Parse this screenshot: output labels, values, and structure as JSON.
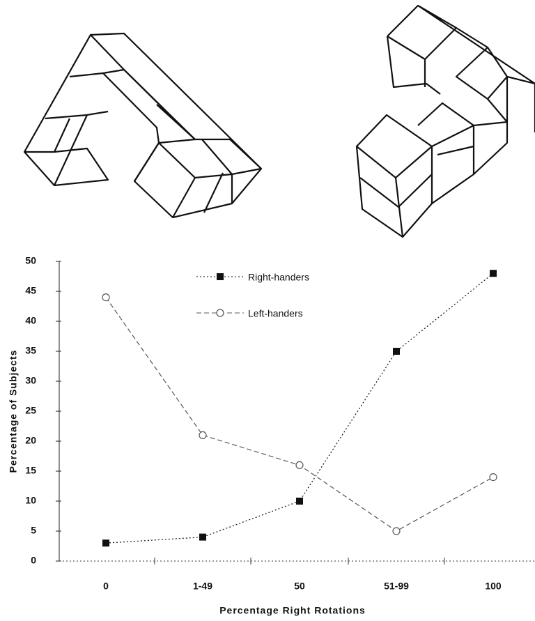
{
  "chart_data": {
    "type": "line",
    "xlabel": "Percentage Right Rotations",
    "ylabel": "Percentage of Subjects",
    "categories": [
      "0",
      "1-49",
      "50",
      "51-99",
      "100"
    ],
    "series": [
      {
        "name": "Right-handers",
        "color": "#111111",
        "marker": "square",
        "dash": "2 3",
        "values": [
          3,
          4,
          10,
          35,
          48
        ]
      },
      {
        "name": "Left-handers",
        "color": "#555555",
        "marker": "circle",
        "dash": "7 4",
        "values": [
          44,
          21,
          16,
          5,
          14
        ]
      }
    ],
    "ylim": [
      0,
      50
    ],
    "yticks": [
      0,
      5,
      10,
      15,
      20,
      25,
      30,
      35,
      40,
      45,
      50
    ]
  }
}
